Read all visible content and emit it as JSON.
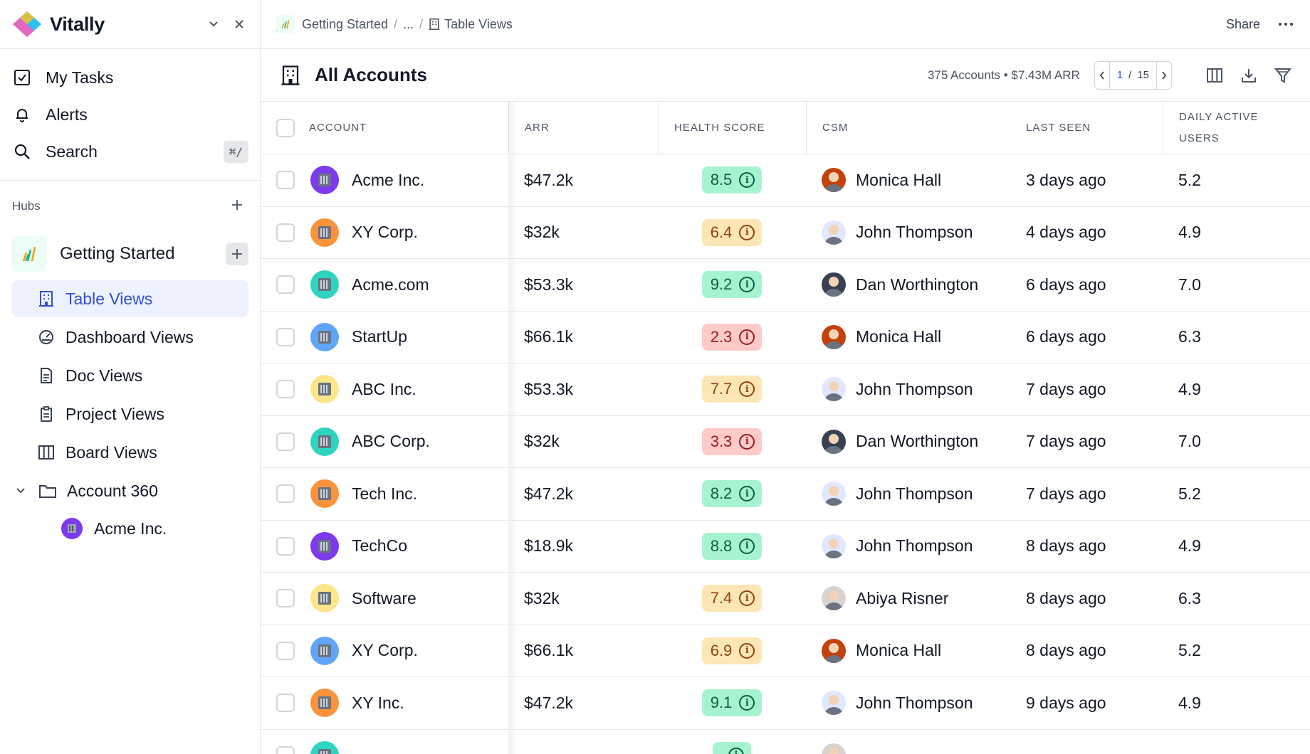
{
  "sidebar": {
    "brand": "Vitally",
    "nav": [
      {
        "label": "My Tasks",
        "icon": "checkbox-icon"
      },
      {
        "label": "Alerts",
        "icon": "bell-icon"
      },
      {
        "label": "Search",
        "icon": "search-icon",
        "shortcut": "⌘/"
      }
    ],
    "hubs_label": "Hubs",
    "hub": {
      "label": "Getting Started",
      "items": [
        {
          "label": "Table Views",
          "icon": "building-icon",
          "active": true
        },
        {
          "label": "Dashboard Views",
          "icon": "dashboard-icon"
        },
        {
          "label": "Doc Views",
          "icon": "doc-icon"
        },
        {
          "label": "Project Views",
          "icon": "clipboard-icon"
        },
        {
          "label": "Board Views",
          "icon": "columns-icon"
        }
      ],
      "folder": {
        "label": "Account 360",
        "child": "Acme Inc."
      }
    }
  },
  "topbar": {
    "crumb_root": "Getting Started",
    "crumb_sep": "/",
    "crumb_ellipsis": "...",
    "crumb_current": "Table Views",
    "share": "Share"
  },
  "view": {
    "title": "All Accounts",
    "summary": "375 Accounts • $7.43M ARR",
    "page_current": "1",
    "page_sep": "/",
    "page_total": "15"
  },
  "table": {
    "headers": {
      "account": "ACCOUNT",
      "arr": "ARR",
      "health": "HEALTH SCORE",
      "csm": "CSM",
      "last_seen": "LAST SEEN",
      "dau_line1": "DAILY ACTIVE",
      "dau_line2": "USERS"
    },
    "rows": [
      {
        "account": "Acme Inc.",
        "avatar_color": "#7c3aed",
        "arr": "$47.2k",
        "health": "8.5",
        "health_level": "good",
        "csm": "Monica Hall",
        "csm_avatar": "#c2410c",
        "last_seen": "3 days ago",
        "dau": "5.2"
      },
      {
        "account": "XY Corp.",
        "avatar_color": "#fb923c",
        "arr": "$32k",
        "health": "6.4",
        "health_level": "mid",
        "csm": "John Thompson",
        "csm_avatar": "#e0e7ff",
        "last_seen": "4 days ago",
        "dau": "4.9"
      },
      {
        "account": "Acme.com",
        "avatar_color": "#2dd4bf",
        "arr": "$53.3k",
        "health": "9.2",
        "health_level": "good",
        "csm": "Dan Worthington",
        "csm_avatar": "#374151",
        "last_seen": "6 days ago",
        "dau": "7.0"
      },
      {
        "account": "StartUp",
        "avatar_color": "#60a5fa",
        "arr": "$66.1k",
        "health": "2.3",
        "health_level": "bad",
        "csm": "Monica Hall",
        "csm_avatar": "#c2410c",
        "last_seen": "6 days ago",
        "dau": "6.3"
      },
      {
        "account": "ABC Inc.",
        "avatar_color": "#fde68a",
        "arr": "$53.3k",
        "health": "7.7",
        "health_level": "mid",
        "csm": "John Thompson",
        "csm_avatar": "#e0e7ff",
        "last_seen": "7 days ago",
        "dau": "4.9"
      },
      {
        "account": "ABC Corp.",
        "avatar_color": "#2dd4bf",
        "arr": "$32k",
        "health": "3.3",
        "health_level": "bad",
        "csm": "Dan Worthington",
        "csm_avatar": "#374151",
        "last_seen": "7 days ago",
        "dau": "7.0"
      },
      {
        "account": "Tech Inc.",
        "avatar_color": "#fb923c",
        "arr": "$47.2k",
        "health": "8.2",
        "health_level": "good",
        "csm": "John Thompson",
        "csm_avatar": "#e0e7ff",
        "last_seen": "7 days ago",
        "dau": "5.2"
      },
      {
        "account": "TechCo",
        "avatar_color": "#7c3aed",
        "arr": "$18.9k",
        "health": "8.8",
        "health_level": "good",
        "csm": "John Thompson",
        "csm_avatar": "#e0e7ff",
        "last_seen": "8 days ago",
        "dau": "4.9"
      },
      {
        "account": "Software",
        "avatar_color": "#fde68a",
        "arr": "$32k",
        "health": "7.4",
        "health_level": "mid",
        "csm": "Abiya Risner",
        "csm_avatar": "#d6d3d1",
        "last_seen": "8 days ago",
        "dau": "6.3"
      },
      {
        "account": "XY Corp.",
        "avatar_color": "#60a5fa",
        "arr": "$66.1k",
        "health": "6.9",
        "health_level": "mid",
        "csm": "Monica Hall",
        "csm_avatar": "#c2410c",
        "last_seen": "8 days ago",
        "dau": "5.2"
      },
      {
        "account": "XY Inc.",
        "avatar_color": "#fb923c",
        "arr": "$47.2k",
        "health": "9.1",
        "health_level": "good",
        "csm": "John Thompson",
        "csm_avatar": "#e0e7ff",
        "last_seen": "9 days ago",
        "dau": "4.9"
      },
      {
        "account": "",
        "avatar_color": "#2dd4bf",
        "arr": "",
        "health": "",
        "health_level": "good",
        "csm": "",
        "csm_avatar": "#d6d3d1",
        "last_seen": "",
        "dau": ""
      }
    ]
  },
  "colors": {
    "accent": "#2e4fd8",
    "health_good_bg": "#a7f3d0",
    "health_good_fg": "#065f46",
    "health_mid_bg": "#fde6b5",
    "health_mid_fg": "#92400e",
    "health_bad_bg": "#fecaca",
    "health_bad_fg": "#991b1b"
  }
}
